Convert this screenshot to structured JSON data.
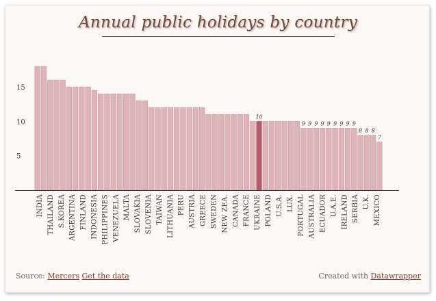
{
  "title": "Annual public holidays by country",
  "footer": {
    "source_label": "Source:",
    "source_link": "Mercers",
    "data_link": "Get the data",
    "created_label": "Created with",
    "created_link": "Datawrapper"
  },
  "colors": {
    "bar": "#dfb3b8",
    "bar_stroke": "#c99aa0",
    "highlight": "#b05f6b",
    "axis": "#333333",
    "text": "#333333"
  },
  "chart_data": {
    "type": "bar",
    "title": "Annual public holidays by country",
    "xlabel": "",
    "ylabel": "",
    "ylim": [
      0,
      18
    ],
    "yticks": [
      5,
      10,
      15
    ],
    "highlight": "U.S.A.",
    "categories": [
      "INDIA",
      "THAILAND",
      "S.KOREA",
      "ARGENTINA",
      "FINLAND",
      "INDONESIA",
      "PHILIPPINES",
      "VENEZUELA",
      "MALTA",
      "SLOVAKIA",
      "SLOVENIA",
      "TAIWAN",
      "LITHUANIA",
      "PERU",
      "AUSTRIA",
      "GREECE",
      "SWEDEN",
      "NEW ZEA.",
      "CANADA",
      "FRANCE",
      "UKRAINE",
      "POLAND",
      "U.S.A.",
      "LUX.",
      "PORTUGAL",
      "AUSTRALIA",
      "ECUADOR",
      "U.A.E.",
      "IRELAND",
      "SERBIA",
      "U.K.",
      "MEXICO"
    ],
    "bars": [
      {
        "label": "INDIA",
        "value": 18
      },
      {
        "label": "",
        "value": 18
      },
      {
        "label": "THAILAND",
        "value": 16
      },
      {
        "label": "",
        "value": 16
      },
      {
        "label": "S.KOREA",
        "value": 15
      },
      {
        "label": "",
        "value": 15
      },
      {
        "label": "ARGENTINA",
        "value": 15
      },
      {
        "label": "",
        "value": 14.5
      },
      {
        "label": "FINLAND",
        "value": 14
      },
      {
        "label": "",
        "value": 14
      },
      {
        "label": "INDONESIA",
        "value": 14
      },
      {
        "label": "",
        "value": 14
      },
      {
        "label": "PHILIPPINES",
        "value": 14
      },
      {
        "label": "",
        "value": 13
      },
      {
        "label": "VENEZUELA",
        "value": 13
      },
      {
        "label": "",
        "value": 12
      },
      {
        "label": "MALTA",
        "value": 12
      },
      {
        "label": "",
        "value": 12
      },
      {
        "label": "SLOVAKIA",
        "value": 12
      },
      {
        "label": "",
        "value": 12
      },
      {
        "label": "SLOVENIA",
        "value": 12
      },
      {
        "label": "",
        "value": 12
      },
      {
        "label": "TAIWAN",
        "value": 12
      },
      {
        "label": "",
        "value": 12
      },
      {
        "label": "LITHUANIA",
        "value": 11
      },
      {
        "label": "",
        "value": 11
      },
      {
        "label": "PERU",
        "value": 11
      },
      {
        "label": "",
        "value": 11
      },
      {
        "label": "AUSTRIA",
        "value": 11
      },
      {
        "label": "",
        "value": 11
      },
      {
        "label": "GREECE",
        "value": 11
      },
      {
        "label": "",
        "value": 10
      },
      {
        "label": "SWEDEN",
        "value": 10
      },
      {
        "label": "",
        "value": 10
      },
      {
        "label": "NEW ZEA.",
        "value": 10,
        "value_label": "10"
      },
      {
        "label": "",
        "value": 10
      },
      {
        "label": "CANADA",
        "value": 10
      },
      {
        "label": "",
        "value": 10
      },
      {
        "label": "FRANCE",
        "value": 10
      },
      {
        "label": "",
        "value": 9,
        "value_label": "9"
      },
      {
        "label": "UKRAINE",
        "value": 9,
        "value_label": "9"
      },
      {
        "label": "",
        "value": 9,
        "value_label": "9"
      },
      {
        "label": "POLAND",
        "value": 9,
        "value_label": "9"
      },
      {
        "label": "",
        "value": 9,
        "value_label": "9"
      },
      {
        "label": "U.S.A.",
        "value": 9,
        "value_label": "9"
      },
      {
        "label": "",
        "value": 9,
        "value_label": "9"
      },
      {
        "label": "LUX.",
        "value": 9,
        "value_label": "9"
      },
      {
        "label": "",
        "value": 9,
        "value_label": "9"
      },
      {
        "label": "PORTUGAL",
        "value": 9,
        "value_label": "9"
      },
      {
        "label": "",
        "value": 8,
        "value_label": "8"
      },
      {
        "label": "AUSTRALIA",
        "value": 8,
        "value_label": "8"
      },
      {
        "label": "",
        "value": 8,
        "value_label": "8"
      },
      {
        "label": "ECUADOR",
        "value": 7,
        "value_label": "7"
      }
    ],
    "bars_extra_labels": [
      "U.A.E.",
      "IRELAND",
      "SERBIA",
      "U.K.",
      "MEXICO"
    ]
  }
}
